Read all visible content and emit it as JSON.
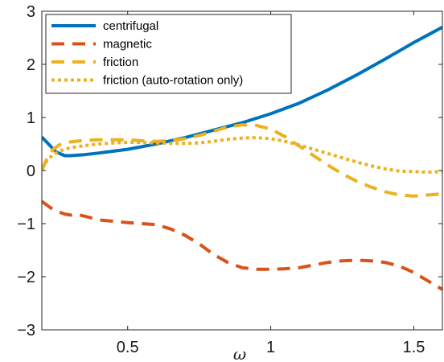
{
  "chart_data": {
    "type": "line",
    "title": "",
    "xlabel": "ω",
    "ylabel": "",
    "xlim": [
      0.2,
      1.6
    ],
    "ylim": [
      -3,
      3
    ],
    "x_ticks": [
      0.5,
      1,
      1.5
    ],
    "x_tick_labels": [
      "0.5",
      "1",
      "1.5"
    ],
    "y_ticks": [
      -3,
      -2,
      -1,
      0,
      1,
      2,
      3
    ],
    "y_tick_labels": [
      "−3",
      "−2",
      "−1",
      "0",
      "1",
      "2",
      "3"
    ],
    "grid": false,
    "legend_position": "top-left",
    "series": [
      {
        "name": "centrifugal",
        "color": "#0072BD",
        "style": "solid",
        "x": [
          0.2,
          0.25,
          0.28,
          0.3,
          0.35,
          0.4,
          0.5,
          0.6,
          0.7,
          0.8,
          0.9,
          1.0,
          1.1,
          1.2,
          1.3,
          1.4,
          1.5,
          1.6
        ],
        "y": [
          0.63,
          0.35,
          0.28,
          0.28,
          0.3,
          0.33,
          0.4,
          0.5,
          0.62,
          0.76,
          0.9,
          1.07,
          1.27,
          1.52,
          1.8,
          2.1,
          2.41,
          2.7
        ]
      },
      {
        "name": "magnetic",
        "color": "#D95319",
        "style": "dashed",
        "x": [
          0.2,
          0.23,
          0.26,
          0.28,
          0.3,
          0.32,
          0.35,
          0.4,
          0.5,
          0.6,
          0.65,
          0.7,
          0.75,
          0.8,
          0.85,
          0.9,
          0.95,
          1.0,
          1.05,
          1.1,
          1.15,
          1.2,
          1.25,
          1.3,
          1.35,
          1.4,
          1.45,
          1.5,
          1.55,
          1.6
        ],
        "y": [
          -0.58,
          -0.7,
          -0.78,
          -0.82,
          -0.84,
          -0.82,
          -0.86,
          -0.93,
          -0.98,
          -1.02,
          -1.1,
          -1.22,
          -1.38,
          -1.58,
          -1.73,
          -1.83,
          -1.86,
          -1.86,
          -1.85,
          -1.83,
          -1.78,
          -1.73,
          -1.7,
          -1.69,
          -1.7,
          -1.73,
          -1.8,
          -1.92,
          -2.08,
          -2.24
        ]
      },
      {
        "name": "friction",
        "color": "#EDB120",
        "style": "dashed",
        "x": [
          0.2,
          0.22,
          0.24,
          0.26,
          0.28,
          0.3,
          0.35,
          0.4,
          0.45,
          0.5,
          0.55,
          0.6,
          0.65,
          0.7,
          0.75,
          0.8,
          0.85,
          0.9,
          0.95,
          1.0,
          1.05,
          1.1,
          1.15,
          1.2,
          1.25,
          1.3,
          1.35,
          1.4,
          1.45,
          1.5,
          1.55,
          1.6
        ],
        "y": [
          0.0,
          0.25,
          0.4,
          0.48,
          0.52,
          0.54,
          0.57,
          0.58,
          0.58,
          0.58,
          0.56,
          0.55,
          0.56,
          0.6,
          0.66,
          0.74,
          0.82,
          0.86,
          0.85,
          0.78,
          0.64,
          0.46,
          0.28,
          0.1,
          -0.06,
          -0.2,
          -0.31,
          -0.4,
          -0.46,
          -0.48,
          -0.46,
          -0.44
        ]
      },
      {
        "name": "friction (auto-rotation only)",
        "color": "#EDB120",
        "style": "dotted",
        "x": [
          0.2,
          0.22,
          0.24,
          0.26,
          0.28,
          0.3,
          0.35,
          0.4,
          0.45,
          0.5,
          0.55,
          0.6,
          0.65,
          0.7,
          0.75,
          0.8,
          0.85,
          0.9,
          0.95,
          1.0,
          1.05,
          1.1,
          1.15,
          1.2,
          1.25,
          1.3,
          1.35,
          1.4,
          1.45,
          1.5,
          1.55,
          1.6
        ],
        "y": [
          0.05,
          0.2,
          0.3,
          0.36,
          0.4,
          0.43,
          0.47,
          0.5,
          0.52,
          0.53,
          0.53,
          0.52,
          0.51,
          0.51,
          0.52,
          0.55,
          0.59,
          0.61,
          0.62,
          0.6,
          0.55,
          0.48,
          0.4,
          0.32,
          0.24,
          0.16,
          0.09,
          0.03,
          -0.01,
          -0.02,
          -0.03,
          -0.02
        ]
      }
    ]
  }
}
